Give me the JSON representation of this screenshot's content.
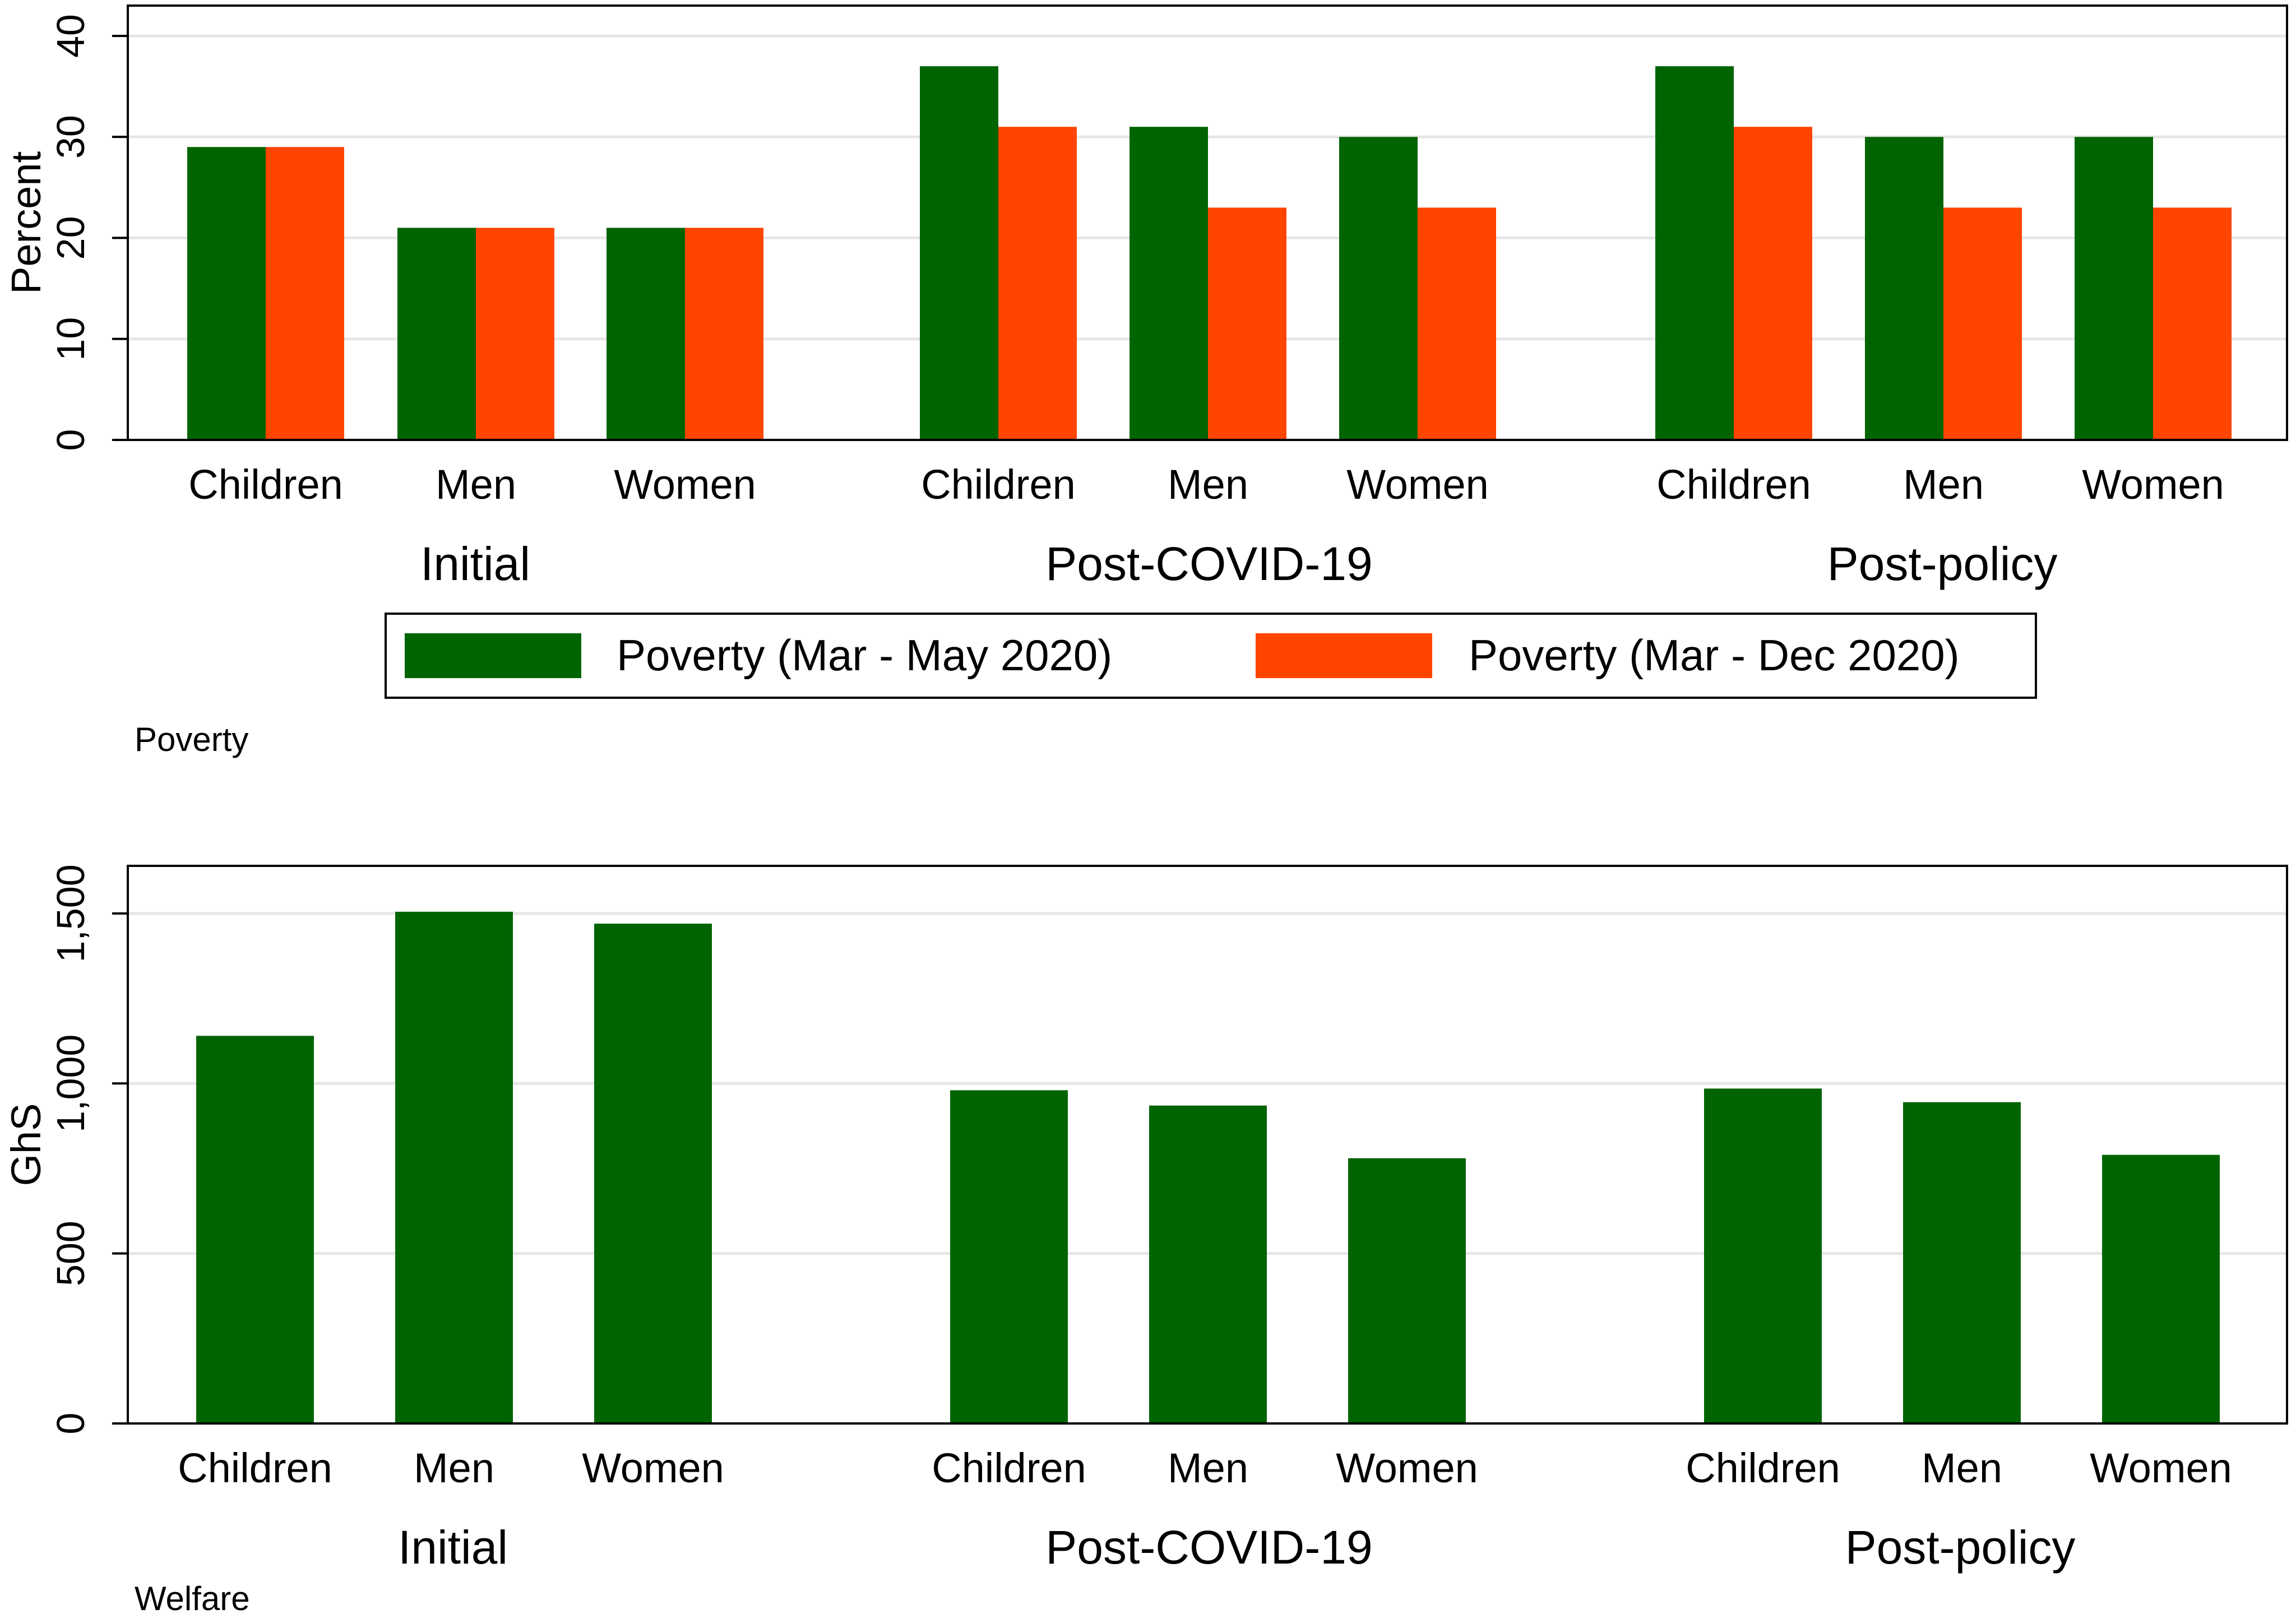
{
  "chart_data": [
    {
      "type": "bar",
      "caption": "Poverty",
      "ylabel": "Percent",
      "ylim": [
        0,
        43
      ],
      "yticks": [
        0,
        10,
        20,
        30,
        40
      ],
      "grid": true,
      "groups": [
        {
          "label": "Initial",
          "categories": [
            "Children",
            "Men",
            "Women"
          ]
        },
        {
          "label": "Post-COVID-19",
          "categories": [
            "Children",
            "Men",
            "Women"
          ]
        },
        {
          "label": "Post-policy",
          "categories": [
            "Children",
            "Men",
            "Women"
          ]
        }
      ],
      "series": [
        {
          "name": "Poverty (Mar - May 2020)",
          "color": "#006400",
          "values": [
            29,
            21,
            21,
            37,
            31,
            30,
            37,
            30,
            30
          ]
        },
        {
          "name": "Poverty (Mar - Dec 2020)",
          "color": "#ff4500",
          "values": [
            29,
            21,
            21,
            31,
            23,
            23,
            31,
            23,
            23
          ]
        }
      ],
      "legend": "bottom"
    },
    {
      "type": "bar",
      "caption": "Welfare",
      "ylabel": "GhS",
      "ylim": [
        0,
        1640
      ],
      "yticks": [
        0,
        500,
        1000,
        1500
      ],
      "yticklabels": [
        "0",
        "500",
        "1,000",
        "1,500"
      ],
      "grid": true,
      "groups": [
        {
          "label": "Initial",
          "categories": [
            "Children",
            "Men",
            "Women"
          ]
        },
        {
          "label": "Post-COVID-19",
          "categories": [
            "Children",
            "Men",
            "Women"
          ]
        },
        {
          "label": "Post-policy",
          "categories": [
            "Children",
            "Men",
            "Women"
          ]
        }
      ],
      "series": [
        {
          "color": "#006400",
          "values": [
            1140,
            1505,
            1470,
            980,
            935,
            780,
            985,
            945,
            790
          ]
        }
      ]
    }
  ]
}
